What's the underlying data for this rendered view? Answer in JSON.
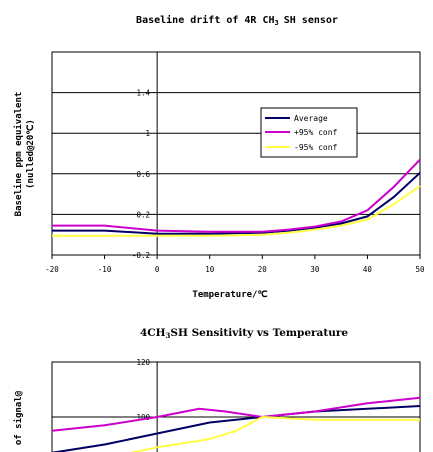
{
  "chart_data": [
    {
      "type": "line",
      "title_parts": [
        "Baseline drift of 4R CH",
        "3",
        "SH sensor"
      ],
      "xlabel": "Temperature/℃",
      "ylabel": "Baseline ppm equivalent",
      "ylabel2": "(nulled@20℃)",
      "xlim": [
        -20,
        50
      ],
      "ylim": [
        -0.2,
        1.8
      ],
      "xticks": [
        "-20",
        "-10",
        "0",
        "10",
        "20",
        "30",
        "40",
        "50"
      ],
      "yticks": [
        "-0.2",
        "0.2",
        "0.6",
        "1",
        "1.4"
      ],
      "grid": "horizontal",
      "legend_position": "right",
      "series": [
        {
          "name": "Average",
          "color": "#000066",
          "x": [
            -20,
            -10,
            0,
            10,
            20,
            25,
            30,
            35,
            40,
            45,
            50
          ],
          "y": [
            0.04,
            0.04,
            0.01,
            0.01,
            0.02,
            0.04,
            0.07,
            0.11,
            0.18,
            0.37,
            0.61
          ]
        },
        {
          "name": "+95% conf",
          "color": "#cc00cc",
          "x": [
            -20,
            -10,
            0,
            10,
            20,
            25,
            30,
            35,
            40,
            45,
            50
          ],
          "y": [
            0.09,
            0.09,
            0.04,
            0.03,
            0.03,
            0.05,
            0.08,
            0.13,
            0.24,
            0.47,
            0.74
          ]
        },
        {
          "name": "-95% conf",
          "color": "#ffff44",
          "x": [
            -20,
            -10,
            0,
            10,
            20,
            25,
            30,
            35,
            40,
            45,
            50
          ],
          "y": [
            -0.01,
            -0.01,
            -0.01,
            -0.01,
            0.0,
            0.02,
            0.05,
            0.09,
            0.15,
            0.3,
            0.48
          ]
        }
      ]
    },
    {
      "type": "line",
      "title_parts": [
        "4CH",
        "3",
        "SH Sensitivity vs Temperature"
      ],
      "ylabel": "of signal@",
      "xlim": [
        -20,
        50
      ],
      "ylim": [
        80,
        120
      ],
      "yticks": [
        "120",
        "100"
      ],
      "grid": "horizontal",
      "series": [
        {
          "name": "",
          "color": "#000066",
          "x": [
            -20,
            -10,
            0,
            10,
            20,
            30,
            40,
            50
          ],
          "y": [
            87,
            90,
            94,
            98,
            100,
            102,
            103,
            104
          ]
        },
        {
          "name": "",
          "color": "#cc00cc",
          "x": [
            -20,
            -10,
            0,
            8,
            13,
            20,
            30,
            40,
            50
          ],
          "y": [
            95,
            97,
            100,
            103,
            102,
            100,
            102,
            105,
            107
          ]
        },
        {
          "name": "",
          "color": "#ffff44",
          "x": [
            -20,
            -10,
            0,
            10,
            15,
            20,
            30,
            40,
            50
          ],
          "y": [
            81,
            85,
            89,
            92,
            95,
            100,
            99,
            99,
            99
          ]
        }
      ]
    }
  ]
}
